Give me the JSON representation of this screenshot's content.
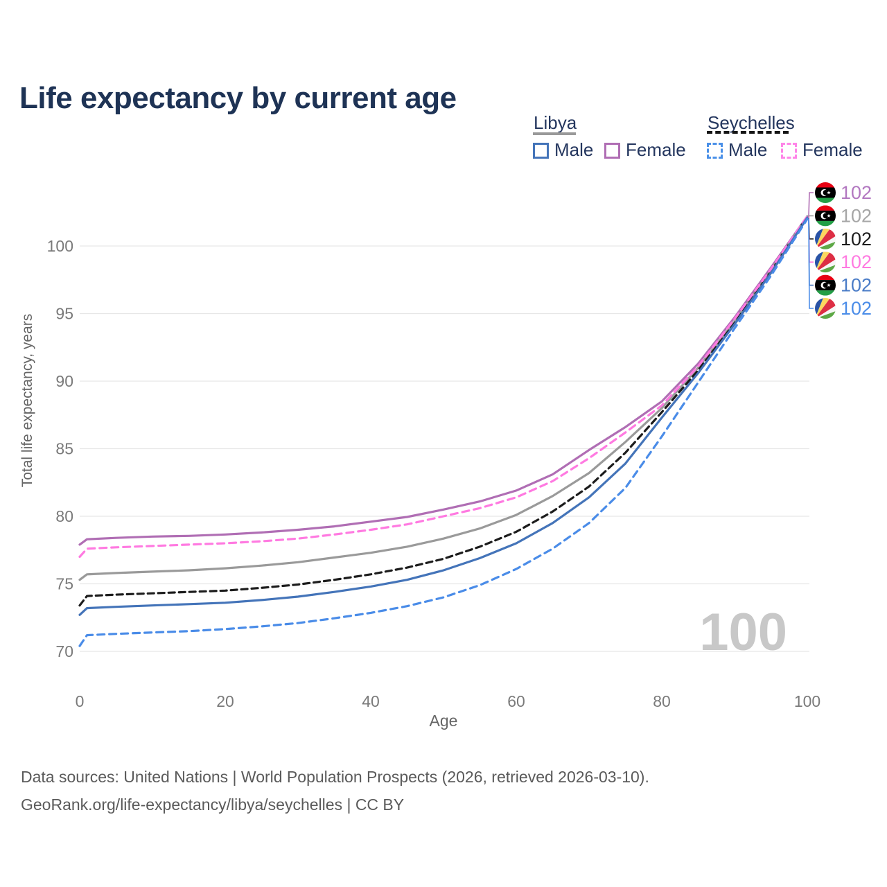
{
  "title": "Life expectancy by current age",
  "watermark_hover_age": "100",
  "legend": {
    "groups": [
      {
        "label": "Libya",
        "underline_style": "solid",
        "underline_color": "#999999",
        "items": [
          {
            "label": "Male",
            "series": "libya_male"
          },
          {
            "label": "Female",
            "series": "libya_female"
          }
        ]
      },
      {
        "label": "Seychelles",
        "underline_style": "dashed",
        "underline_color": "#161616",
        "items": [
          {
            "label": "Male",
            "series": "seychelles_male"
          },
          {
            "label": "Female",
            "series": "seychelles_female"
          }
        ]
      }
    ]
  },
  "chart_data": {
    "type": "line",
    "title": "Life expectancy by current age",
    "xlabel": "Age",
    "ylabel": "Total life expectancy, years",
    "xlim": [
      0,
      100
    ],
    "ylim": [
      70,
      102.5
    ],
    "x_ticks": [
      0,
      20,
      40,
      60,
      80,
      100
    ],
    "y_ticks": [
      70,
      75,
      80,
      85,
      90,
      95,
      100
    ],
    "grid": "horizontal",
    "legend_position": "top-right",
    "ages": [
      0,
      1,
      5,
      10,
      15,
      20,
      25,
      30,
      35,
      40,
      45,
      50,
      55,
      60,
      65,
      70,
      75,
      80,
      85,
      90,
      95,
      100
    ],
    "series": [
      {
        "id": "libya_female",
        "country": "Libya",
        "sex": "Female",
        "style": "solid",
        "color": "#b06eb4",
        "flag_icon": "libya-flag-icon",
        "end_label": "102",
        "end_label_color": "#b277c0",
        "values": [
          77.9,
          78.3,
          78.4,
          78.5,
          78.55,
          78.65,
          78.8,
          79.0,
          79.25,
          79.6,
          79.95,
          80.5,
          81.1,
          81.9,
          83.1,
          84.9,
          86.6,
          88.5,
          91.3,
          94.7,
          98.4,
          102.2
        ]
      },
      {
        "id": "libya_total",
        "country": "Libya",
        "sex": "All",
        "style": "solid",
        "color": "#9a9a9a",
        "flag_icon": "libya-flag-icon",
        "end_label": "102",
        "end_label_color": "#a6a6a6",
        "values": [
          75.3,
          75.7,
          75.8,
          75.9,
          76.0,
          76.15,
          76.35,
          76.6,
          76.95,
          77.3,
          77.75,
          78.35,
          79.1,
          80.1,
          81.5,
          83.2,
          85.5,
          88.0,
          91.0,
          94.4,
          98.2,
          102.2
        ]
      },
      {
        "id": "seychelles_total",
        "country": "Seychelles",
        "sex": "All",
        "style": "dashed",
        "color": "#1c1c1c",
        "flag_icon": "seychelles-flag-icon",
        "end_label": "102",
        "end_label_color": "#1c1c1c",
        "values": [
          73.4,
          74.1,
          74.2,
          74.3,
          74.4,
          74.5,
          74.7,
          74.95,
          75.3,
          75.7,
          76.2,
          76.85,
          77.75,
          78.85,
          80.35,
          82.2,
          84.7,
          87.7,
          90.8,
          94.3,
          98.1,
          102.2
        ]
      },
      {
        "id": "seychelles_female",
        "country": "Seychelles",
        "sex": "Female",
        "style": "dashed",
        "color": "#ff7ae1",
        "flag_icon": "seychelles-flag-icon",
        "end_label": "102",
        "end_label_color": "#ff7ae1",
        "values": [
          77.0,
          77.6,
          77.7,
          77.8,
          77.9,
          78.0,
          78.15,
          78.35,
          78.65,
          79.0,
          79.4,
          80.0,
          80.6,
          81.4,
          82.6,
          84.3,
          86.2,
          88.2,
          91.1,
          94.6,
          98.3,
          102.2
        ]
      },
      {
        "id": "libya_male",
        "country": "Libya",
        "sex": "Male",
        "style": "solid",
        "color": "#4474b9",
        "flag_icon": "libya-flag-icon",
        "end_label": "102",
        "end_label_color": "#4a7cc7",
        "values": [
          72.7,
          73.2,
          73.3,
          73.4,
          73.5,
          73.6,
          73.8,
          74.05,
          74.4,
          74.8,
          75.3,
          76.0,
          76.9,
          78.0,
          79.5,
          81.4,
          83.9,
          87.3,
          90.6,
          94.2,
          98.0,
          102.1
        ]
      },
      {
        "id": "seychelles_male",
        "country": "Seychelles",
        "sex": "Male",
        "style": "dashed",
        "color": "#4a8ce8",
        "flag_icon": "seychelles-flag-icon",
        "end_label": "102",
        "end_label_color": "#4a8ce8",
        "values": [
          70.4,
          71.2,
          71.3,
          71.4,
          71.5,
          71.65,
          71.85,
          72.1,
          72.45,
          72.85,
          73.35,
          74.0,
          74.9,
          76.1,
          77.6,
          79.5,
          82.1,
          85.9,
          89.9,
          93.9,
          97.8,
          102.0
        ]
      }
    ],
    "end_label_order": [
      "libya_female",
      "libya_total",
      "seychelles_total",
      "seychelles_female",
      "libya_male",
      "seychelles_male"
    ]
  },
  "colors": {
    "title": "#1e3355",
    "gridline": "#e7e7e7",
    "tick_text": "#7a7a7a",
    "axis_title": "#666666",
    "watermark": "#c8c8c8",
    "footer": "#5a5a5a"
  },
  "flags": {
    "libya": {
      "red": "#e70013",
      "black": "#000000",
      "green": "#239e46",
      "white": "#ffffff"
    },
    "seychelles": {
      "blue": "#2953a6",
      "yellow": "#fcd75f",
      "red": "#dd2e44",
      "white": "#f7f7f7",
      "green": "#5da846"
    }
  },
  "footer": {
    "line1": "Data sources: United Nations | World Population Prospects (2026, retrieved 2026-03-10).",
    "line2": "GeoRank.org/life-expectancy/libya/seychelles | CC BY"
  }
}
